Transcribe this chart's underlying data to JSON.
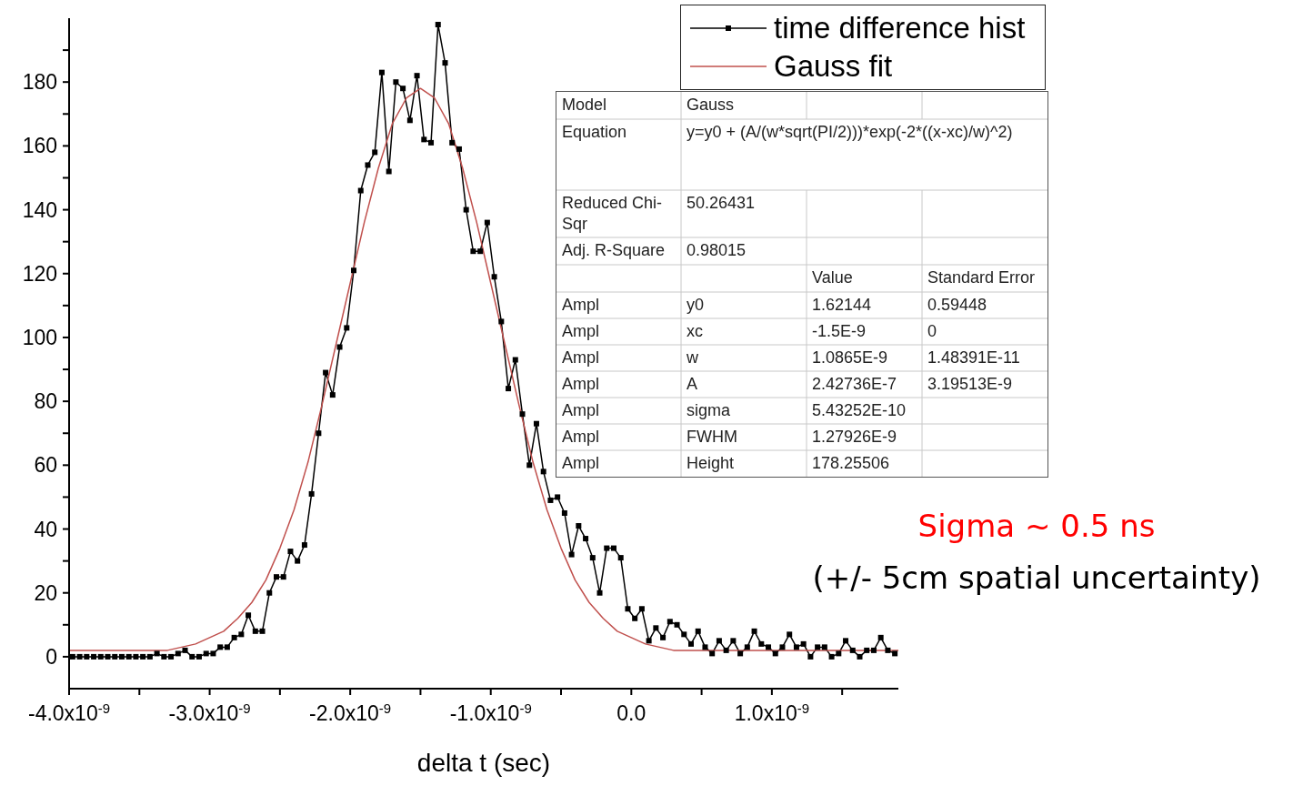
{
  "chart_data": {
    "type": "line",
    "xlabel": "delta t (sec)",
    "legend": "top right",
    "xlim": [
      -4e-09,
      1.9e-09
    ],
    "xticks": [
      {
        "value": -4e-09,
        "label": "-4.0x10$^{-9}$"
      },
      {
        "value": -3.5e-09,
        "label": null
      },
      {
        "value": -3e-09,
        "label": "-3.0x10$^{-9}$"
      },
      {
        "value": -2.5e-09,
        "label": null
      },
      {
        "value": -2e-09,
        "label": "-2.0x10$^{-9}$"
      },
      {
        "value": -1.5e-09,
        "label": null
      },
      {
        "value": -1e-09,
        "label": "-1.0x10$^{-9}$"
      },
      {
        "value": -5e-10,
        "label": null
      },
      {
        "value": 0,
        "label": "0.0"
      },
      {
        "value": 5e-10,
        "label": null
      },
      {
        "value": 1e-09,
        "label": "1.0x10$^{-9}$"
      },
      {
        "value": 1.5e-09,
        "label": null
      }
    ],
    "ylim": [
      -10,
      200
    ],
    "yticks": [
      0,
      {
        "value": 10,
        "label": null
      },
      20,
      {
        "value": 30,
        "label": null
      },
      40,
      {
        "value": 50,
        "label": null
      },
      60,
      {
        "value": 70,
        "label": null
      },
      80,
      {
        "value": 90,
        "label": null
      },
      100,
      {
        "value": 110,
        "label": null
      },
      120,
      {
        "value": 130,
        "label": null
      },
      140,
      {
        "value": 150,
        "label": null
      },
      160,
      {
        "value": 170,
        "label": null
      },
      180,
      {
        "value": 190,
        "label": null
      }
    ],
    "series": [
      {
        "name": "time difference hist",
        "color": "#000000",
        "marker": "square",
        "line_style": "solid",
        "x": [
          -3.975e-09,
          -3.925e-09,
          -3.875e-09,
          -3.825e-09,
          -3.775e-09,
          -3.725e-09,
          -3.675e-09,
          -3.625e-09,
          -3.575e-09,
          -3.525e-09,
          -3.475e-09,
          -3.425e-09,
          -3.375e-09,
          -3.325e-09,
          -3.275e-09,
          -3.225e-09,
          -3.175e-09,
          -3.125e-09,
          -3.075e-09,
          -3.025e-09,
          -2.975e-09,
          -2.925e-09,
          -2.875e-09,
          -2.825e-09,
          -2.775e-09,
          -2.725e-09,
          -2.675e-09,
          -2.625e-09,
          -2.575e-09,
          -2.525e-09,
          -2.475e-09,
          -2.425e-09,
          -2.375e-09,
          -2.325e-09,
          -2.275e-09,
          -2.225e-09,
          -2.175e-09,
          -2.125e-09,
          -2.075e-09,
          -2.025e-09,
          -1.975e-09,
          -1.925e-09,
          -1.875e-09,
          -1.825e-09,
          -1.775e-09,
          -1.725e-09,
          -1.675e-09,
          -1.625e-09,
          -1.575e-09,
          -1.525e-09,
          -1.475e-09,
          -1.425e-09,
          -1.375e-09,
          -1.325e-09,
          -1.275e-09,
          -1.225e-09,
          -1.175e-09,
          -1.125e-09,
          -1.075e-09,
          -1.025e-09,
          -9.75e-10,
          -9.25e-10,
          -8.75e-10,
          -8.25e-10,
          -7.75e-10,
          -7.25e-10,
          -6.75e-10,
          -6.25e-10,
          -5.75e-10,
          -5.25e-10,
          -4.75e-10,
          -4.25e-10,
          -3.75e-10,
          -3.25e-10,
          -2.75e-10,
          -2.25e-10,
          -1.75e-10,
          -1.25e-10,
          -7.5e-11,
          -2.5e-11,
          2.5e-11,
          7.5e-11,
          1.25e-10,
          1.75e-10,
          2.25e-10,
          2.75e-10,
          3.25e-10,
          3.75e-10,
          4.25e-10,
          4.75e-10,
          5.25e-10,
          5.75e-10,
          6.25e-10,
          6.75e-10,
          7.25e-10,
          7.75e-10,
          8.25e-10,
          8.75e-10,
          9.25e-10,
          9.75e-10,
          1.025e-09,
          1.075e-09,
          1.125e-09,
          1.175e-09,
          1.225e-09,
          1.275e-09,
          1.325e-09,
          1.375e-09,
          1.425e-09,
          1.475e-09,
          1.525e-09,
          1.575e-09,
          1.625e-09,
          1.675e-09,
          1.725e-09,
          1.775e-09,
          1.825e-09,
          1.875e-09
        ],
        "values": [
          0,
          0,
          0,
          0,
          0,
          0,
          0,
          0,
          0,
          0,
          0,
          0,
          1,
          0,
          0,
          1,
          2,
          0,
          0,
          1,
          1,
          3,
          3,
          6,
          7,
          13,
          8,
          8,
          20,
          25,
          25,
          33,
          30,
          35,
          51,
          70,
          89,
          82,
          97,
          103,
          121,
          146,
          154,
          158,
          183,
          152,
          180,
          178,
          168,
          182,
          162,
          161,
          198,
          186,
          161,
          159,
          140,
          127,
          127,
          136,
          119,
          105,
          84,
          93,
          76,
          60,
          73,
          58,
          49,
          50,
          45,
          32,
          41,
          37,
          31,
          20,
          34,
          34,
          31,
          15,
          12,
          15,
          5,
          9,
          6,
          11,
          10,
          7,
          4,
          8,
          3,
          1,
          5,
          2,
          5,
          1,
          3,
          8,
          4,
          3,
          1,
          3,
          7,
          3,
          4,
          0,
          3,
          3,
          0,
          1,
          5,
          2,
          0,
          2,
          2,
          6,
          2,
          1
        ]
      },
      {
        "name": "Gauss fit",
        "color": "#c0504d",
        "marker": "none",
        "line_style": "solid",
        "x": [
          -4e-09,
          -3.9e-09,
          -3.8e-09,
          -3.7e-09,
          -3.6e-09,
          -3.5e-09,
          -3.4e-09,
          -3.3e-09,
          -3.2e-09,
          -3.1e-09,
          -3e-09,
          -2.9e-09,
          -2.8e-09,
          -2.7e-09,
          -2.6e-09,
          -2.5e-09,
          -2.4e-09,
          -2.3e-09,
          -2.2e-09,
          -2.1e-09,
          -2e-09,
          -1.9e-09,
          -1.8e-09,
          -1.7e-09,
          -1.6e-09,
          -1.5e-09,
          -1.4e-09,
          -1.3e-09,
          -1.2e-09,
          -1.1e-09,
          -1e-09,
          -9e-10,
          -8e-10,
          -7e-10,
          -6e-10,
          -5e-10,
          -4e-10,
          -3e-10,
          -2e-10,
          -1e-10,
          0,
          1e-10,
          2e-10,
          3e-10,
          4e-10,
          5e-10,
          6e-10,
          7e-10,
          8e-10,
          9e-10,
          1e-09,
          1.1e-09,
          1.2e-09,
          1.3e-09,
          1.4e-09,
          1.5e-09,
          1.6e-09,
          1.7e-09,
          1.8e-09,
          1.9e-09
        ],
        "values": [
          2,
          2,
          2,
          2,
          2,
          2,
          2,
          2,
          3,
          4,
          6,
          8,
          12,
          17,
          24,
          34,
          46,
          61,
          79,
          98,
          117,
          136,
          153,
          167,
          175,
          178,
          175,
          167,
          153,
          136,
          117,
          98,
          79,
          61,
          46,
          34,
          24,
          17,
          12,
          8,
          6,
          4,
          3,
          2,
          2,
          2,
          2,
          2,
          2,
          2,
          2,
          2,
          2,
          2,
          2,
          2,
          2,
          2,
          2,
          2
        ]
      }
    ],
    "annotations": [
      "Model",
      "Gauss",
      "Equation",
      "y=y0 + (A/(w*sqrt(PI/2)))*exp(-2*((x-xc)/w)^2)",
      "Reduced Chi-Sqr",
      "50.26431",
      "Adj. R-Square",
      "0.98015",
      "Value",
      "Standard Error",
      "Ampl",
      "y0",
      "1.62144",
      "0.59448",
      "Ampl",
      "xc",
      "-1.5E-9",
      "0",
      "Ampl",
      "w",
      "1.0865E-9",
      "1.48391E-11",
      "Ampl",
      "A",
      "2.42736E-7",
      "3.19513E-9",
      "Ampl",
      "sigma",
      "5.43252E-10",
      "Ampl",
      "FWHM",
      "1.27926E-9",
      "Ampl",
      "Height",
      "178.25506",
      "Sigma ~ 0.5 ns",
      "(+/- 5cm spatial uncertainty)"
    ]
  }
}
